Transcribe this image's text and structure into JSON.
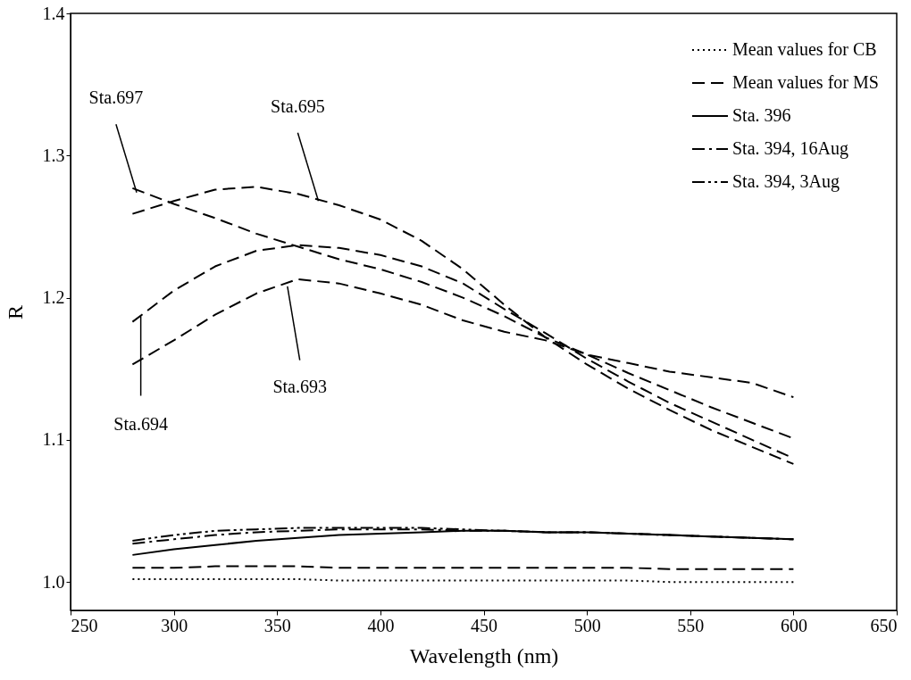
{
  "chart_data": {
    "type": "line",
    "xlabel": "Wavelength (nm)",
    "ylabel": "R",
    "xlim": [
      250,
      650
    ],
    "xticks": [
      250,
      300,
      350,
      400,
      450,
      500,
      550,
      600,
      650
    ],
    "ylim": [
      0.98,
      1.4
    ],
    "yticks": [
      {
        "value": 1.0,
        "label": "1.0"
      },
      {
        "value": 1.1,
        "label": "1.1"
      },
      {
        "value": 1.2,
        "label": "1.2"
      },
      {
        "value": 1.3,
        "label": "1.3"
      },
      {
        "value": 1.4,
        "label": "1.4"
      }
    ],
    "grid": false,
    "legend": "top right",
    "marker": "none",
    "x": [
      280,
      300,
      320,
      340,
      360,
      380,
      400,
      420,
      440,
      460,
      480,
      500,
      520,
      540,
      560,
      580,
      600
    ],
    "series": [
      {
        "name": "Mean values for CB",
        "color": "#000000",
        "line_style": "dotted",
        "values": [
          1.002,
          1.002,
          1.002,
          1.002,
          1.002,
          1.001,
          1.001,
          1.001,
          1.001,
          1.001,
          1.001,
          1.001,
          1.001,
          1.0,
          1.0,
          1.0,
          1.0
        ]
      },
      {
        "name": "Mean values for MS",
        "color": "#000000",
        "line_style": "dashed",
        "values": [
          1.01,
          1.01,
          1.011,
          1.011,
          1.011,
          1.01,
          1.01,
          1.01,
          1.01,
          1.01,
          1.01,
          1.01,
          1.01,
          1.009,
          1.009,
          1.009,
          1.009
        ]
      },
      {
        "name": "Sta. 396",
        "color": "#000000",
        "line_style": "solid",
        "values": [
          1.019,
          1.023,
          1.026,
          1.029,
          1.031,
          1.033,
          1.034,
          1.035,
          1.036,
          1.036,
          1.035,
          1.035,
          1.034,
          1.033,
          1.032,
          1.031,
          1.03
        ]
      },
      {
        "name": "Sta. 394, 16Aug",
        "color": "#000000",
        "line_style": "dashdot",
        "values": [
          1.027,
          1.03,
          1.033,
          1.035,
          1.036,
          1.037,
          1.037,
          1.037,
          1.036,
          1.036,
          1.035,
          1.035,
          1.034,
          1.033,
          1.032,
          1.031,
          1.03
        ]
      },
      {
        "name": "Sta. 394, 3Aug",
        "color": "#000000",
        "line_style": "dashdotdot",
        "values": [
          1.029,
          1.033,
          1.036,
          1.037,
          1.038,
          1.038,
          1.038,
          1.038,
          1.037,
          1.036,
          1.035,
          1.035,
          1.034,
          1.033,
          1.032,
          1.031,
          1.03
        ]
      },
      {
        "color": "#000000",
        "line_style": "dashed",
        "values": [
          1.277,
          1.266,
          1.256,
          1.245,
          1.236,
          1.227,
          1.22,
          1.211,
          1.2,
          1.187,
          1.172,
          1.16,
          1.154,
          1.148,
          1.144,
          1.14,
          1.13
        ]
      },
      {
        "color": "#000000",
        "line_style": "dashed",
        "values": [
          1.259,
          1.268,
          1.276,
          1.278,
          1.273,
          1.265,
          1.255,
          1.24,
          1.22,
          1.195,
          1.172,
          1.153,
          1.136,
          1.121,
          1.107,
          1.095,
          1.083
        ]
      },
      {
        "color": "#000000",
        "line_style": "dashed",
        "values": [
          1.183,
          1.205,
          1.222,
          1.233,
          1.237,
          1.235,
          1.23,
          1.222,
          1.21,
          1.192,
          1.175,
          1.157,
          1.141,
          1.126,
          1.113,
          1.1,
          1.087
        ]
      },
      {
        "color": "#000000",
        "line_style": "dashed",
        "values": [
          1.153,
          1.17,
          1.188,
          1.203,
          1.213,
          1.21,
          1.203,
          1.195,
          1.184,
          1.176,
          1.17,
          1.16,
          1.147,
          1.135,
          1.123,
          1.112,
          1.101
        ]
      }
    ],
    "annotations": [
      {
        "text": "Sta.697",
        "x": 282,
        "y": 1.274
      },
      {
        "text": "Sta.695",
        "x": 370,
        "y": 1.268
      },
      {
        "text": "Sta.694",
        "x": 284,
        "y": 1.187
      },
      {
        "text": "Sta.693",
        "x": 355,
        "y": 1.208
      }
    ]
  }
}
